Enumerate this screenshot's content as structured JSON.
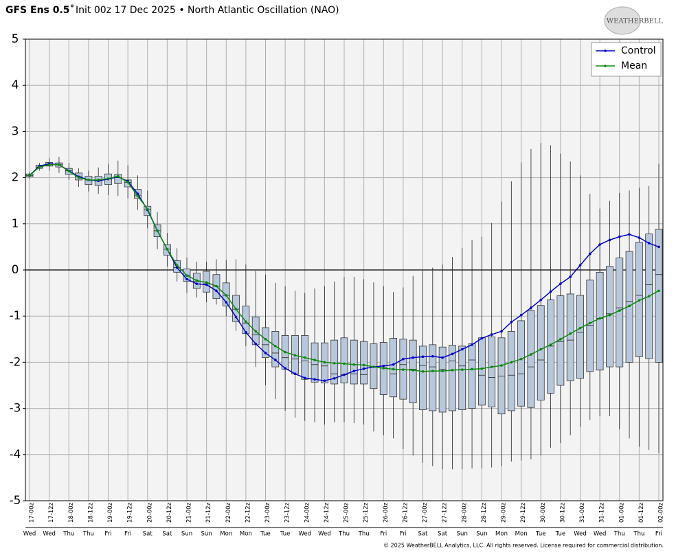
{
  "chart_data": {
    "type": "boxplot",
    "title": "GFS Ens 0.5˚",
    "subtitle": "Init 00z 17 Dec 2025 • North Atlantic Oscillation (NAO)",
    "logo": "WEATHERBELL",
    "footer": "© 2025 WeatherBELL Analytics, LLC. All rights reserved. License required for commercial distribution.",
    "categories": [
      "17-00z",
      null,
      "17-12z",
      null,
      "18-00z",
      null,
      "18-12z",
      null,
      "19-00z",
      null,
      "19-12z",
      null,
      "20-00z",
      null,
      "20-12z",
      null,
      "21-00z",
      null,
      "21-12z",
      null,
      "22-00z",
      null,
      "22-12z",
      null,
      "23-00z",
      null,
      "23-12z",
      null,
      "24-00z",
      null,
      "24-12z",
      null,
      "25-00z",
      null,
      "25-12z",
      null,
      "26-00z",
      null,
      "26-12z",
      null,
      "27-00z",
      null,
      "27-12z",
      null,
      "28-00z",
      null,
      "28-12z",
      null,
      "29-00z",
      null,
      "29-12z",
      null,
      "30-00z",
      null,
      "30-12z",
      null,
      "31-00z",
      null,
      "31-12z",
      null,
      "01-00z",
      null,
      "01-12z",
      null,
      "02-00z"
    ],
    "weekdays": [
      "Wed",
      null,
      "Wed",
      null,
      "Thu",
      null,
      "Thu",
      null,
      "Fri",
      null,
      "Fri",
      null,
      "Sat",
      null,
      "Sat",
      null,
      "Sun",
      null,
      "Sun",
      null,
      "Mon",
      null,
      "Mon",
      null,
      "Tue",
      null,
      "Tue",
      null,
      "Wed",
      null,
      "Wed",
      null,
      "Thu",
      null,
      "Thu",
      null,
      "Fri",
      null,
      "Fri",
      null,
      "Sat",
      null,
      "Sat",
      null,
      "Sun",
      null,
      "Sun",
      null,
      "Mon",
      null,
      "Mon",
      null,
      "Tue",
      null,
      "Tue",
      null,
      "Wed",
      null,
      "Wed",
      null,
      "Thu",
      null,
      "Thu",
      null,
      "Fri"
    ],
    "boxes": [
      [
        1.98,
        2.02,
        2.05,
        2.08,
        2.12
      ],
      [
        2.15,
        2.2,
        2.23,
        2.27,
        2.32
      ],
      [
        2.15,
        2.25,
        2.28,
        2.33,
        2.42
      ],
      [
        2.1,
        2.23,
        2.28,
        2.32,
        2.45
      ],
      [
        1.95,
        2.07,
        2.15,
        2.2,
        2.32
      ],
      [
        1.8,
        1.95,
        2.02,
        2.1,
        2.2
      ],
      [
        1.7,
        1.85,
        1.95,
        2.03,
        2.15
      ],
      [
        1.65,
        1.83,
        1.93,
        2.03,
        2.22
      ],
      [
        1.62,
        1.85,
        1.97,
        2.08,
        2.3
      ],
      [
        1.6,
        1.87,
        2.0,
        2.07,
        2.37
      ],
      [
        1.55,
        1.8,
        1.9,
        1.95,
        2.27
      ],
      [
        1.3,
        1.55,
        1.62,
        1.75,
        2.05
      ],
      [
        0.9,
        1.18,
        1.3,
        1.38,
        1.72
      ],
      [
        0.45,
        0.72,
        0.85,
        0.98,
        1.25
      ],
      [
        0.07,
        0.32,
        0.45,
        0.55,
        0.8
      ],
      [
        -0.25,
        -0.05,
        0.05,
        0.2,
        0.47
      ],
      [
        -0.5,
        -0.25,
        -0.12,
        0.02,
        0.27
      ],
      [
        -0.6,
        -0.4,
        -0.25,
        -0.07,
        0.18
      ],
      [
        -0.7,
        -0.48,
        -0.3,
        -0.03,
        0.18
      ],
      [
        -0.75,
        -0.62,
        -0.35,
        -0.1,
        0.23
      ],
      [
        -1.0,
        -0.78,
        -0.55,
        -0.28,
        0.22
      ],
      [
        -1.32,
        -1.12,
        -0.85,
        -0.55,
        0.23
      ],
      [
        -1.65,
        -1.38,
        -1.15,
        -0.78,
        0.12
      ],
      [
        -2.1,
        -1.62,
        -1.4,
        -1.02,
        -0.02
      ],
      [
        -2.5,
        -1.9,
        -1.62,
        -1.25,
        -0.1
      ],
      [
        -2.8,
        -2.1,
        -1.8,
        -1.33,
        -0.28
      ],
      [
        -3.05,
        -2.15,
        -1.9,
        -1.42,
        -0.35
      ],
      [
        -3.2,
        -2.25,
        -1.93,
        -1.42,
        -0.45
      ],
      [
        -3.27,
        -2.37,
        -1.97,
        -1.42,
        -0.5
      ],
      [
        -3.3,
        -2.43,
        -2.05,
        -1.58,
        -0.4
      ],
      [
        -3.35,
        -2.45,
        -2.08,
        -1.58,
        -0.35
      ],
      [
        -3.3,
        -2.47,
        -2.25,
        -1.52,
        -0.25
      ],
      [
        -3.3,
        -2.45,
        -2.27,
        -1.47,
        -0.15
      ],
      [
        -3.32,
        -2.47,
        -2.25,
        -1.52,
        -0.15
      ],
      [
        -3.35,
        -2.47,
        -2.27,
        -1.55,
        -0.2
      ],
      [
        -3.5,
        -2.57,
        -2.1,
        -1.6,
        -0.27
      ],
      [
        -3.58,
        -2.7,
        -2.12,
        -1.57,
        -0.35
      ],
      [
        -3.65,
        -2.75,
        -2.25,
        -1.48,
        -0.48
      ],
      [
        -3.88,
        -2.8,
        -2.05,
        -1.5,
        -0.38
      ],
      [
        -4.02,
        -2.88,
        -2.15,
        -1.52,
        -0.13
      ],
      [
        -4.18,
        -3.03,
        -2.07,
        -1.65,
        -0.02
      ],
      [
        -4.25,
        -3.05,
        -2.1,
        -1.62,
        0.05
      ],
      [
        -4.32,
        -3.08,
        -2.15,
        -1.67,
        0.12
      ],
      [
        -4.32,
        -3.05,
        -1.97,
        -1.63,
        0.28
      ],
      [
        -4.32,
        -3.03,
        -2.08,
        -1.65,
        0.48
      ],
      [
        -4.3,
        -3.0,
        -1.95,
        -1.6,
        0.65
      ],
      [
        -4.3,
        -2.93,
        -2.28,
        -1.47,
        0.72
      ],
      [
        -4.28,
        -2.97,
        -2.33,
        -1.45,
        1.02
      ],
      [
        -4.25,
        -3.12,
        -2.3,
        -1.47,
        1.48
      ],
      [
        -4.15,
        -3.05,
        -2.28,
        -1.33,
        1.92
      ],
      [
        -4.13,
        -2.95,
        -2.25,
        -1.1,
        2.33
      ],
      [
        -4.1,
        -2.98,
        -2.1,
        -0.88,
        2.62
      ],
      [
        -4.02,
        -2.82,
        -1.95,
        -0.77,
        2.75
      ],
      [
        -3.85,
        -2.67,
        -1.65,
        -0.65,
        2.7
      ],
      [
        -3.75,
        -2.5,
        -1.55,
        -0.56,
        2.52
      ],
      [
        -3.58,
        -2.4,
        -1.52,
        -0.52,
        2.35
      ],
      [
        -3.4,
        -2.35,
        -1.35,
        -0.55,
        2.05
      ],
      [
        -3.25,
        -2.2,
        -1.2,
        -0.22,
        1.65
      ],
      [
        -3.17,
        -2.17,
        -1.05,
        -0.05,
        1.33
      ],
      [
        -3.17,
        -2.1,
        -0.95,
        0.08,
        1.5
      ],
      [
        -3.45,
        -2.1,
        -0.82,
        0.26,
        1.67
      ],
      [
        -3.65,
        -2.0,
        -0.68,
        0.4,
        1.72
      ],
      [
        -3.83,
        -1.88,
        -0.55,
        0.6,
        1.78
      ],
      [
        -3.9,
        -1.92,
        -0.32,
        0.78,
        1.82
      ],
      [
        -3.97,
        -2.0,
        -0.1,
        0.88,
        2.3
      ]
    ],
    "box_color": "#b7c8dd",
    "series": [
      {
        "name": "Control",
        "color": "#0000c8",
        "values": [
          2.05,
          2.25,
          2.3,
          2.28,
          2.15,
          2.02,
          1.95,
          1.93,
          1.97,
          2.02,
          1.92,
          1.65,
          1.3,
          0.85,
          0.45,
          0.05,
          -0.2,
          -0.3,
          -0.32,
          -0.45,
          -0.7,
          -1.02,
          -1.35,
          -1.6,
          -1.8,
          -1.95,
          -2.13,
          -2.25,
          -2.34,
          -2.37,
          -2.4,
          -2.35,
          -2.27,
          -2.19,
          -2.14,
          -2.1,
          -2.08,
          -2.05,
          -1.93,
          -1.9,
          -1.88,
          -1.87,
          -1.9,
          -1.82,
          -1.72,
          -1.62,
          -1.48,
          -1.4,
          -1.33,
          -1.13,
          -0.98,
          -0.82,
          -0.65,
          -0.47,
          -0.3,
          -0.15,
          0.1,
          0.35,
          0.55,
          0.65,
          0.72,
          0.77,
          0.7,
          0.58,
          0.5
        ]
      },
      {
        "name": "Mean",
        "color": "#0a8a0a",
        "values": [
          2.05,
          2.23,
          2.28,
          2.28,
          2.14,
          2.0,
          1.95,
          1.95,
          1.98,
          2.03,
          1.9,
          1.6,
          1.32,
          0.85,
          0.45,
          0.1,
          -0.12,
          -0.23,
          -0.27,
          -0.35,
          -0.55,
          -0.85,
          -1.12,
          -1.33,
          -1.5,
          -1.65,
          -1.78,
          -1.85,
          -1.9,
          -1.95,
          -2.0,
          -2.02,
          -2.03,
          -2.05,
          -2.06,
          -2.1,
          -2.13,
          -2.15,
          -2.16,
          -2.17,
          -2.2,
          -2.19,
          -2.19,
          -2.17,
          -2.16,
          -2.15,
          -2.14,
          -2.1,
          -2.07,
          -2.0,
          -1.93,
          -1.83,
          -1.72,
          -1.62,
          -1.5,
          -1.38,
          -1.26,
          -1.15,
          -1.05,
          -0.98,
          -0.88,
          -0.78,
          -0.66,
          -0.57,
          -0.45
        ]
      }
    ],
    "ylim": [
      -5,
      5
    ],
    "yticks": [
      -5,
      -4,
      -3,
      -2,
      -1,
      0,
      1,
      2,
      3,
      4,
      5
    ],
    "grid": true,
    "legend": "upper right"
  }
}
